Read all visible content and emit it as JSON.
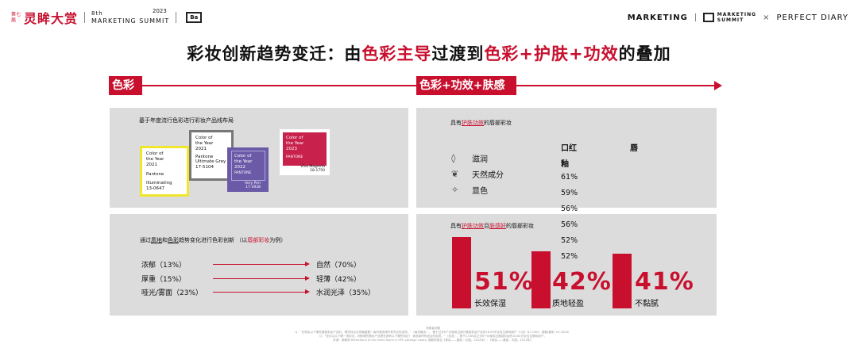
{
  "header": {
    "edition": "第七届",
    "brand": "灵眸大赏",
    "event_line1": "8th",
    "event_line2": "MARKETING SUMMIT",
    "event_year": "2023",
    "logo_text": "Ba",
    "right_brand1": "MARKETING",
    "right_brand2_line1": "MARKETING",
    "right_brand2_line2": "SUMMIT",
    "times": "×",
    "right_brand3": "PERFECT DIARY"
  },
  "title": {
    "part1": "彩妆创新趋势变迁：由",
    "hl1": "色彩主导",
    "part2": "过渡到",
    "hl2": "色彩+护肤+功效",
    "part3": "的叠加"
  },
  "timeline": {
    "left_tag": "色彩",
    "right_tag": "色彩+功效+肤感"
  },
  "panel1": {
    "caption": "基于年度流行色彩进行彩妆产品线布局",
    "cards": [
      {
        "title": "Color of\nthe Year\n2021",
        "brand": "Pantone",
        "name": "Illuminating\n13-0647"
      },
      {
        "title": "Color of\nthe Year\n2021",
        "brand": "Pantone",
        "name": "Ultimate Grey\n17-5104"
      },
      {
        "title": "Color of\nthe Year\n2022",
        "brand": "PANTONE",
        "name": "Very Peri\n17-3938"
      },
      {
        "title": "Color of\nthe Year\n2023",
        "brand": "PANTONE",
        "name": "Viva Magenta\n18-1750"
      }
    ]
  },
  "panel2": {
    "caption_a": "通过",
    "caption_b": "质地",
    "caption_c": "和",
    "caption_d": "色彩",
    "caption_e": "趋势变化进行色彩创新  （以",
    "caption_f": "唇部彩妆",
    "caption_g": "为例）",
    "trends": [
      {
        "from": "浓郁（13%）",
        "to": "自然（70%）"
      },
      {
        "from": "厚重（15%）",
        "to": "轻薄（42%）"
      },
      {
        "from": "哑光/雾面（23%）",
        "to": "水润光泽（35%）"
      }
    ]
  },
  "panel3": {
    "caption_a": "具有",
    "caption_b": "护肤功效",
    "caption_c": "的唇部彩妆",
    "benefits": [
      {
        "icon": "droplets-icon",
        "glyph": "◊",
        "label": "滋润"
      },
      {
        "icon": "leaf-icon",
        "glyph": "❦",
        "label": "天然成分"
      },
      {
        "icon": "sparkle-icon",
        "glyph": "✧",
        "label": "显色"
      }
    ],
    "col1": "口红",
    "col1b": "釉",
    "col2": "唇",
    "percents": [
      "61%",
      "59%",
      "56%",
      "56%",
      "52%",
      "52%"
    ]
  },
  "panel4": {
    "caption_a": "具有",
    "caption_b": "护肤功效",
    "caption_c": "且",
    "caption_d": "肤感好",
    "caption_e": "的唇部彩妆",
    "stats": [
      {
        "value": "51%",
        "label": "长效保湿"
      },
      {
        "value": "42%",
        "label": "质地轻盈"
      },
      {
        "value": "41%",
        "label": "不黏腻"
      }
    ]
  },
  "footnote": {
    "line1": "消费者问题",
    "line2": "Q：“在购买以下哪些唇部彩妆产品时，哪些特点对您最重要？每列请选择所有符合的选项。”（每列最多）。 基于过去6个月使用过部分唇部彩妆产品的18-60岁女性互联网用户（口红: N=2400，唇釉/唇彩: N=1626）",
    "line3": "Q：“您对以从下哪一项说法，判断哪些唇彩产品是在具有以下哪些特征？ 请选择所有适合的选项。”（多选）。基于1,085名过去6个月使用过唇部彩妆的18-60岁女性互联网用户。",
    "line4": "来源：英敏特 Reflections of the times found in SPC package colors; 英敏特报告《美妆——唇部 - 中国，2022年》; 《美妆——唇部 - 中国，2023年》"
  },
  "colors": {
    "accent": "#c8102e",
    "panel_bg": "#dcdcdc"
  }
}
